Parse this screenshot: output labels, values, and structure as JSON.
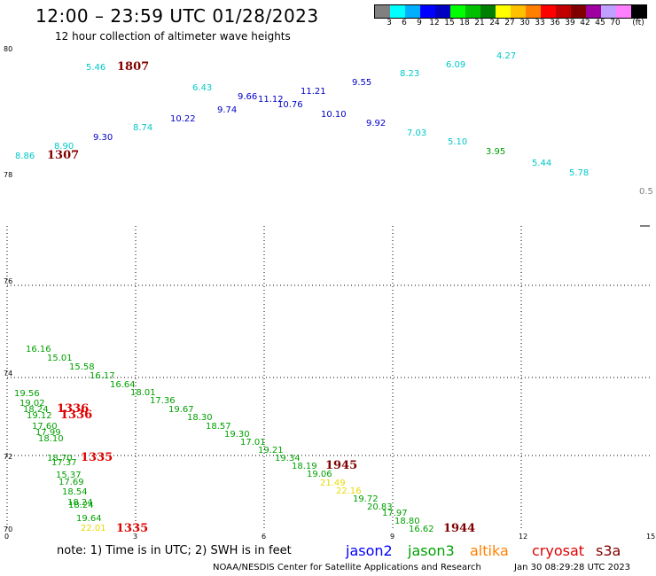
{
  "header": {
    "title": "12:00 – 23:59 UTC 01/28/2023",
    "subtitle": "12 hour collection of altimeter wave heights"
  },
  "legend": {
    "unit": "(ft)",
    "colors": [
      "#808080",
      "#00ffff",
      "#00b0ff",
      "#0000ff",
      "#0000c0",
      "#00ff00",
      "#00c000",
      "#008000",
      "#ffff00",
      "#ffc000",
      "#ff8000",
      "#ff0000",
      "#c00000",
      "#800000",
      "#a000a0",
      "#c0a0ff",
      "#ff80ff",
      "#000000"
    ],
    "labels": [
      "3",
      "6",
      "9",
      "12",
      "15",
      "18",
      "21",
      "24",
      "27",
      "30",
      "33",
      "36",
      "39",
      "42",
      "45",
      "70"
    ]
  },
  "axes": {
    "top_lat_labels": [
      "80",
      "78"
    ],
    "bottom_lat_labels": [
      "76",
      "74",
      "72",
      "70"
    ],
    "lon_labels": [
      "0",
      "3",
      "6",
      "9",
      "12",
      "15"
    ]
  },
  "colors": {
    "cyan": "#00c8c8",
    "blue": "#0000c8",
    "green": "#00a000",
    "yellow": "#e8d800",
    "red": "#e00000",
    "darkred": "#800000",
    "gray": "#808080"
  },
  "observations": {
    "top": [
      {
        "v": "5.46",
        "c": "cyan"
      },
      {
        "v": "1807",
        "c": "darkred",
        "pass": true
      },
      {
        "v": "6.43",
        "c": "cyan"
      },
      {
        "v": "9.66",
        "c": "blue"
      },
      {
        "v": "11.12",
        "c": "blue"
      },
      {
        "v": "11.21",
        "c": "blue"
      },
      {
        "v": "9.55",
        "c": "blue"
      },
      {
        "v": "8.23",
        "c": "cyan"
      },
      {
        "v": "6.09",
        "c": "cyan"
      },
      {
        "v": "4.27",
        "c": "cyan"
      },
      {
        "v": "9.74",
        "c": "blue"
      },
      {
        "v": "10.76",
        "c": "blue"
      },
      {
        "v": "10.22",
        "c": "blue"
      },
      {
        "v": "10.10",
        "c": "blue"
      },
      {
        "v": "8.74",
        "c": "cyan"
      },
      {
        "v": "9.92",
        "c": "blue"
      },
      {
        "v": "9.30",
        "c": "blue"
      },
      {
        "v": "7.03",
        "c": "cyan"
      },
      {
        "v": "8.90",
        "c": "cyan"
      },
      {
        "v": "5.10",
        "c": "cyan"
      },
      {
        "v": "8.86",
        "c": "cyan"
      },
      {
        "v": "1307",
        "c": "darkred",
        "pass": true
      },
      {
        "v": "3.95",
        "c": "green"
      },
      {
        "v": "5.44",
        "c": "cyan"
      },
      {
        "v": "5.78",
        "c": "cyan"
      },
      {
        "v": "0.5",
        "c": "gray"
      }
    ],
    "bottom": [
      {
        "v": "16.16",
        "c": "green"
      },
      {
        "v": "15.01",
        "c": "green"
      },
      {
        "v": "15.58",
        "c": "green"
      },
      {
        "v": "16.17",
        "c": "green"
      },
      {
        "v": "16.64",
        "c": "green"
      },
      {
        "v": "18.01",
        "c": "green"
      },
      {
        "v": "17.36",
        "c": "green"
      },
      {
        "v": "19.67",
        "c": "green"
      },
      {
        "v": "18.30",
        "c": "green"
      },
      {
        "v": "18.57",
        "c": "green"
      },
      {
        "v": "19.30",
        "c": "green"
      },
      {
        "v": "17.01",
        "c": "green"
      },
      {
        "v": "19.21",
        "c": "green"
      },
      {
        "v": "19.34",
        "c": "green"
      },
      {
        "v": "18.19",
        "c": "green"
      },
      {
        "v": "1945",
        "c": "darkred",
        "pass": true
      },
      {
        "v": "19.06",
        "c": "green"
      },
      {
        "v": "21.49",
        "c": "yellow"
      },
      {
        "v": "22.16",
        "c": "yellow"
      },
      {
        "v": "19.72",
        "c": "green"
      },
      {
        "v": "20.83",
        "c": "green"
      },
      {
        "v": "17.97",
        "c": "green"
      },
      {
        "v": "18.80",
        "c": "green"
      },
      {
        "v": "16.62",
        "c": "green"
      },
      {
        "v": "1944",
        "c": "darkred",
        "pass": true
      },
      {
        "v": "19.56",
        "c": "green"
      },
      {
        "v": "19.02",
        "c": "green"
      },
      {
        "v": "18.24",
        "c": "green"
      },
      {
        "v": "1336",
        "c": "red",
        "pass": true
      },
      {
        "v": "19.12",
        "c": "green"
      },
      {
        "v": "1336",
        "c": "red",
        "pass": true
      },
      {
        "v": "17.60",
        "c": "green"
      },
      {
        "v": "17.99",
        "c": "green"
      },
      {
        "v": "18.10",
        "c": "green"
      },
      {
        "v": "18.70",
        "c": "green"
      },
      {
        "v": "1335",
        "c": "red",
        "pass": true
      },
      {
        "v": "17.37",
        "c": "green"
      },
      {
        "v": "15.37",
        "c": "green"
      },
      {
        "v": "17.69",
        "c": "green"
      },
      {
        "v": "18.54",
        "c": "green"
      },
      {
        "v": "18.24",
        "c": "green"
      },
      {
        "v": "18.24",
        "c": "green"
      },
      {
        "v": "19.64",
        "c": "green"
      },
      {
        "v": "22.01",
        "c": "yellow"
      },
      {
        "v": "1335",
        "c": "red",
        "pass": true
      }
    ]
  },
  "note": "note:  1) Time is in UTC; 2) SWH is in feet",
  "satellites": [
    {
      "name": "jason2",
      "color": "#0000ff"
    },
    {
      "name": "jason3",
      "color": "#00a000"
    },
    {
      "name": "altika",
      "color": "#ff8000"
    },
    {
      "name": "cryosat",
      "color": "#e00000"
    },
    {
      "name": "s3a",
      "color": "#800000"
    }
  ],
  "footer": {
    "credit": "NOAA/NESDIS Center for Satellite Applications and Research",
    "timestamp": "Jan 30 08:29:28 UTC 2023"
  }
}
